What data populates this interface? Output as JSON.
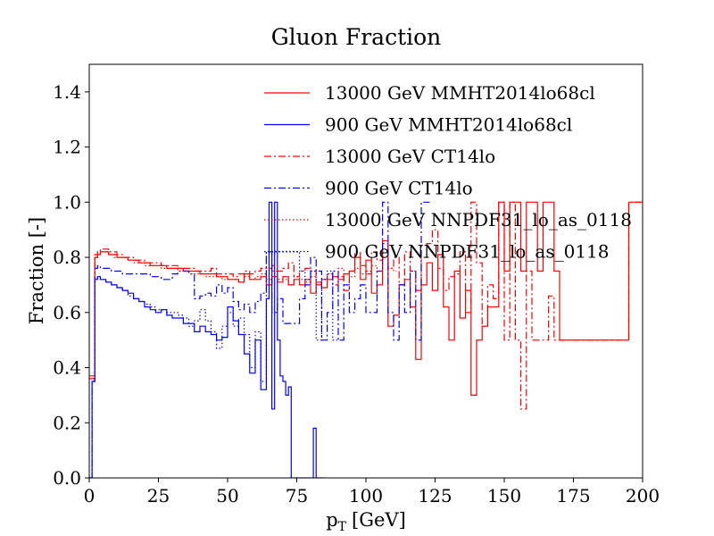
{
  "chart_data": {
    "type": "line",
    "title": "Gluon Fraction",
    "xlabel": "p",
    "xlabel_sub": "T",
    "xlabel_unit": "[GeV]",
    "ylabel": "Fraction [-]",
    "xlim": [
      0,
      200
    ],
    "ylim": [
      0,
      1.5
    ],
    "x_ticks": [
      0,
      25,
      50,
      75,
      100,
      125,
      150,
      175,
      200
    ],
    "y_ticks": [
      0.0,
      0.2,
      0.4,
      0.6,
      0.8,
      1.0,
      1.2,
      1.4
    ],
    "x_tick_labels": [
      "0",
      "25",
      "50",
      "75",
      "100",
      "125",
      "150",
      "175",
      "200"
    ],
    "y_tick_labels": [
      "0.0",
      "0.2",
      "0.4",
      "0.6",
      "0.8",
      "1.0",
      "1.2",
      "1.4"
    ],
    "grid": false,
    "legend_position": "top-right",
    "bin_width": 1,
    "series": [
      {
        "name": "13000 GeV MMHT2014lo68cl",
        "color": "#ff0000",
        "linestyle": "solid",
        "x": [
          0,
          1,
          2,
          3,
          4,
          5,
          6,
          7,
          8,
          9,
          10,
          12,
          14,
          16,
          18,
          20,
          22,
          24,
          26,
          28,
          30,
          32,
          34,
          36,
          38,
          40,
          42,
          44,
          46,
          48,
          50,
          52,
          54,
          56,
          58,
          60,
          62,
          64,
          66,
          68,
          70,
          72,
          74,
          76,
          78,
          80,
          82,
          84,
          86,
          88,
          90,
          92,
          94,
          96,
          98,
          100,
          102,
          104,
          106,
          108,
          110,
          112,
          114,
          116,
          118,
          120,
          122,
          124,
          126,
          128,
          130,
          132,
          134,
          136,
          138,
          140,
          142,
          144,
          146,
          148,
          150,
          152,
          154,
          156,
          158,
          160,
          162,
          164,
          166,
          168,
          170,
          175,
          180,
          185,
          190,
          195,
          200
        ],
        "y": [
          0.37,
          0.37,
          0.8,
          0.81,
          0.82,
          0.82,
          0.82,
          0.81,
          0.81,
          0.81,
          0.8,
          0.8,
          0.79,
          0.79,
          0.78,
          0.78,
          0.77,
          0.77,
          0.77,
          0.76,
          0.76,
          0.76,
          0.75,
          0.75,
          0.75,
          0.74,
          0.74,
          0.74,
          0.73,
          0.73,
          0.72,
          0.72,
          0.71,
          0.74,
          0.72,
          0.72,
          0.73,
          0.7,
          0.73,
          0.71,
          0.73,
          0.7,
          0.72,
          0.7,
          0.72,
          0.67,
          0.71,
          0.69,
          0.72,
          0.73,
          0.72,
          0.74,
          0.75,
          0.8,
          0.72,
          0.79,
          0.67,
          0.7,
          0.86,
          0.55,
          0.59,
          0.7,
          0.72,
          0.62,
          0.43,
          0.7,
          0.78,
          0.68,
          0.81,
          0.62,
          0.5,
          0.75,
          0.58,
          0.68,
          0.3,
          0.5,
          0.55,
          0.62,
          0.62,
          1.0,
          0.75,
          1.0,
          1.0,
          0.75,
          1.0,
          1.0,
          0.75,
          1.0,
          1.0,
          0.75,
          0.5,
          0.5,
          0.5,
          0.5,
          0.5,
          1.0,
          1.0
        ]
      },
      {
        "name": "900 GeV MMHT2014lo68cl",
        "color": "#0000ff",
        "linestyle": "solid",
        "x": [
          0,
          1,
          2,
          3,
          4,
          5,
          6,
          8,
          10,
          12,
          14,
          16,
          18,
          20,
          22,
          24,
          26,
          28,
          30,
          32,
          34,
          36,
          38,
          40,
          42,
          44,
          46,
          48,
          50,
          52,
          54,
          56,
          58,
          60,
          62,
          64,
          65,
          66,
          67,
          68,
          69,
          70,
          71,
          72,
          73,
          74,
          75,
          76,
          78,
          80,
          81,
          82,
          84
        ],
        "y": [
          0.0,
          0.35,
          0.72,
          0.73,
          0.72,
          0.72,
          0.71,
          0.7,
          0.69,
          0.68,
          0.67,
          0.65,
          0.64,
          0.62,
          0.61,
          0.6,
          0.61,
          0.59,
          0.58,
          0.58,
          0.56,
          0.56,
          0.53,
          0.55,
          0.53,
          0.52,
          0.5,
          0.51,
          0.62,
          0.57,
          0.52,
          0.45,
          0.38,
          0.5,
          0.32,
          0.65,
          1.0,
          0.25,
          1.0,
          0.5,
          0.37,
          0.35,
          0.3,
          0.33,
          0.0,
          0.0,
          0.0,
          0.0,
          0.0,
          0.0,
          0.18,
          0.0,
          0.0
        ]
      },
      {
        "name": "13000 GeV CT14lo",
        "color": "#ff0000",
        "linestyle": "dashdot",
        "x": [
          0,
          1,
          2,
          3,
          4,
          5,
          6,
          7,
          8,
          9,
          10,
          12,
          14,
          16,
          18,
          20,
          22,
          24,
          26,
          28,
          30,
          32,
          34,
          36,
          38,
          40,
          42,
          44,
          46,
          48,
          50,
          52,
          54,
          56,
          58,
          60,
          62,
          64,
          66,
          68,
          70,
          72,
          74,
          76,
          78,
          80,
          82,
          84,
          86,
          88,
          90,
          92,
          94,
          96,
          98,
          100,
          102,
          104,
          106,
          108,
          110,
          112,
          114,
          116,
          118,
          120,
          122,
          124,
          126,
          128,
          130,
          132,
          134,
          136,
          138,
          140,
          142,
          144,
          146,
          148,
          150,
          152,
          154,
          156,
          158,
          160,
          162,
          164,
          166,
          168,
          170,
          175,
          180,
          185,
          190,
          195,
          200
        ],
        "y": [
          0.36,
          0.36,
          0.81,
          0.82,
          0.83,
          0.83,
          0.83,
          0.82,
          0.82,
          0.82,
          0.81,
          0.8,
          0.8,
          0.79,
          0.79,
          0.78,
          0.78,
          0.78,
          0.77,
          0.77,
          0.77,
          0.76,
          0.76,
          0.76,
          0.75,
          0.75,
          0.75,
          0.76,
          0.74,
          0.74,
          0.74,
          0.73,
          0.74,
          0.75,
          0.74,
          0.75,
          0.76,
          0.76,
          0.77,
          0.75,
          0.76,
          0.78,
          0.73,
          0.75,
          0.76,
          0.75,
          0.7,
          0.72,
          0.74,
          0.7,
          0.73,
          0.68,
          0.75,
          0.82,
          0.77,
          0.74,
          0.82,
          0.79,
          0.85,
          0.76,
          0.8,
          0.7,
          0.82,
          0.75,
          0.68,
          0.8,
          0.85,
          0.9,
          0.76,
          0.68,
          0.73,
          0.74,
          0.82,
          0.6,
          1.0,
          0.78,
          0.55,
          0.7,
          0.65,
          1.0,
          0.5,
          1.0,
          0.5,
          0.25,
          0.75,
          0.5,
          0.5,
          0.5,
          0.66,
          0.5,
          0.5,
          0.5,
          0.5,
          0.5,
          0.5,
          1.0,
          1.0
        ]
      },
      {
        "name": "900 GeV CT14lo",
        "color": "#0000ff",
        "linestyle": "dashdot",
        "x": [
          0,
          1,
          2,
          3,
          4,
          5,
          6,
          8,
          10,
          12,
          14,
          16,
          18,
          20,
          22,
          24,
          26,
          28,
          30,
          32,
          34,
          36,
          38,
          40,
          42,
          44,
          46,
          48,
          50,
          52,
          54,
          56,
          58,
          60,
          62,
          64,
          66,
          68,
          70,
          72,
          74,
          76,
          78,
          80,
          82,
          84,
          86,
          88,
          90,
          92,
          94,
          96,
          98,
          100,
          102,
          104,
          106,
          108,
          110,
          112,
          114,
          116,
          118,
          120,
          122
        ],
        "y": [
          0.0,
          0.35,
          0.76,
          0.77,
          0.76,
          0.76,
          0.76,
          0.75,
          0.75,
          0.74,
          0.74,
          0.74,
          0.74,
          0.74,
          0.73,
          0.73,
          0.72,
          0.72,
          0.74,
          0.75,
          0.75,
          0.74,
          0.65,
          0.66,
          0.67,
          0.66,
          0.7,
          0.67,
          0.69,
          0.64,
          0.61,
          0.63,
          0.6,
          0.64,
          0.67,
          0.82,
          0.6,
          0.65,
          0.56,
          0.56,
          0.56,
          0.65,
          0.7,
          0.8,
          0.75,
          0.5,
          0.6,
          0.75,
          0.5,
          0.7,
          0.6,
          0.65,
          0.7,
          0.6,
          0.6,
          0.75,
          1.0,
          0.6,
          0.5,
          0.7,
          0.6,
          0.75,
          0.5,
          1.0,
          1.0
        ]
      },
      {
        "name": "13000 GeV NNPDF31_lo_as_0118",
        "color": "#ff0000",
        "linestyle": "dotted",
        "x": [
          0,
          1,
          2,
          3,
          4,
          5,
          6,
          7,
          8,
          9,
          10,
          12,
          14,
          16,
          18,
          20,
          22,
          24,
          26,
          28,
          30,
          32,
          34,
          36,
          38,
          40,
          42,
          44,
          46,
          48,
          50,
          52,
          54,
          56,
          58,
          60,
          62,
          64,
          66,
          68,
          70,
          72,
          74,
          76,
          78,
          80,
          82,
          84,
          86,
          88,
          90,
          92,
          94,
          96,
          98,
          100,
          102,
          104,
          106,
          108,
          110
        ],
        "y": [
          0.36,
          0.36,
          0.8,
          0.81,
          0.82,
          0.82,
          0.82,
          0.81,
          0.81,
          0.8,
          0.8,
          0.8,
          0.79,
          0.78,
          0.78,
          0.77,
          0.77,
          0.77,
          0.76,
          0.76,
          0.76,
          0.75,
          0.75,
          0.74,
          0.74,
          0.74,
          0.73,
          0.73,
          0.73,
          0.72,
          0.72,
          0.72,
          0.71,
          0.73,
          0.72,
          0.73,
          0.74,
          0.72,
          0.75,
          0.72,
          0.72,
          0.7,
          0.73,
          0.72,
          0.71,
          0.73,
          0.7,
          0.72,
          0.74,
          0.73,
          0.76,
          0.74,
          0.73,
          0.76,
          0.74,
          0.75,
          0.77,
          0.75,
          0.8,
          0.76,
          0.75
        ]
      },
      {
        "name": "900 GeV NNPDF31_lo_as_0118",
        "color": "#0000ff",
        "linestyle": "dotted",
        "x": [
          0,
          1,
          2,
          3,
          4,
          5,
          6,
          8,
          10,
          12,
          14,
          16,
          18,
          20,
          22,
          24,
          26,
          28,
          30,
          32,
          34,
          36,
          38,
          40,
          42,
          44,
          46,
          48,
          50,
          52,
          54,
          56,
          58,
          60,
          62,
          64,
          66,
          68,
          70,
          72,
          74,
          76,
          78,
          80,
          82,
          84,
          86,
          88,
          90
        ],
        "y": [
          0.0,
          0.35,
          0.72,
          0.73,
          0.72,
          0.72,
          0.71,
          0.7,
          0.69,
          0.68,
          0.66,
          0.65,
          0.64,
          0.63,
          0.62,
          0.61,
          0.61,
          0.6,
          0.6,
          0.59,
          0.58,
          0.55,
          0.57,
          0.61,
          0.57,
          0.53,
          0.47,
          0.55,
          0.6,
          0.55,
          0.58,
          0.52,
          0.4,
          0.53,
          0.35,
          0.82,
          0.82,
          0.82,
          0.82,
          0.82,
          0.82,
          0.75,
          0.72,
          0.75,
          0.5,
          0.72,
          0.75,
          0.5,
          0.5
        ]
      }
    ]
  }
}
